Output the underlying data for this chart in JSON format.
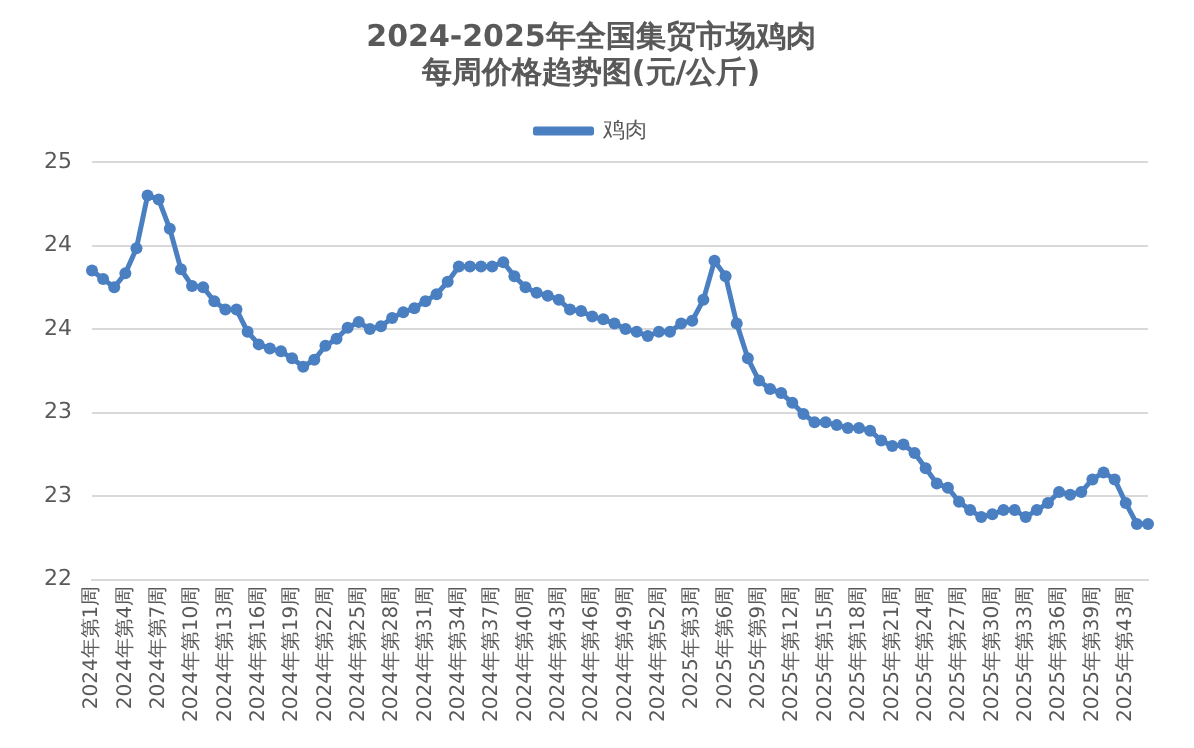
{
  "chart_data": {
    "type": "line",
    "title": "2024-2025年全国集贸市场鸡肉每周价格趋势图(元/公斤)",
    "categories": [
      "2024年第1周",
      null,
      null,
      "2024年第4周",
      null,
      null,
      "2024年第7周",
      null,
      null,
      "2024年第10周",
      null,
      null,
      "2024年第13周",
      null,
      null,
      "2024年第16周",
      null,
      null,
      "2024年第19周",
      null,
      null,
      "2024年第22周",
      null,
      null,
      "2024年第25周",
      null,
      null,
      "2024年第28周",
      null,
      null,
      "2024年第31周",
      null,
      null,
      "2024年第34周",
      null,
      null,
      "2024年第37周",
      null,
      null,
      "2024年第40周",
      null,
      null,
      "2024年第43周",
      null,
      null,
      "2024年第46周",
      null,
      null,
      "2024年第49周",
      null,
      null,
      "2024年第52周",
      null,
      null,
      "2025年第3周",
      null,
      null,
      "2025年第6周",
      null,
      null,
      "2025年第9周",
      null,
      null,
      "2025年第12周",
      null,
      null,
      "2025年第15周",
      null,
      null,
      "2025年第18周",
      null,
      null,
      "2025年第21周",
      null,
      null,
      "2025年第24周",
      null,
      null,
      "2025年第27周",
      null,
      null,
      "2025年第30周",
      null,
      null,
      "2025年第33周",
      null,
      null,
      "2025年第36周",
      null,
      null,
      "2025年第39周",
      null,
      null,
      "2025年第43周",
      null,
      null
    ],
    "series": [
      {
        "name": "鸡肉",
        "color": "#4a7fc1",
        "values": [
          24.22,
          24.16,
          24.1,
          24.2,
          24.38,
          24.76,
          24.73,
          24.52,
          24.23,
          24.11,
          24.1,
          24.0,
          23.94,
          23.94,
          23.78,
          23.69,
          23.66,
          23.64,
          23.59,
          23.53,
          23.58,
          23.68,
          23.73,
          23.81,
          23.85,
          23.8,
          23.82,
          23.88,
          23.92,
          23.95,
          24.0,
          24.05,
          24.14,
          24.25,
          24.25,
          24.25,
          24.25,
          24.28,
          24.18,
          24.1,
          24.06,
          24.04,
          24.01,
          23.94,
          23.93,
          23.89,
          23.87,
          23.84,
          23.8,
          23.78,
          23.75,
          23.78,
          23.78,
          23.84,
          23.86,
          24.01,
          24.29,
          24.18,
          23.84,
          23.59,
          23.43,
          23.37,
          23.34,
          23.27,
          23.19,
          23.13,
          23.13,
          23.11,
          23.09,
          23.09,
          23.07,
          23.0,
          22.96,
          22.97,
          22.91,
          22.8,
          22.69,
          22.66,
          22.56,
          22.5,
          22.45,
          22.47,
          22.5,
          22.5,
          22.45,
          22.5,
          22.55,
          22.63,
          22.61,
          22.63,
          22.72,
          22.77,
          22.72,
          22.55,
          22.4,
          22.4
        ]
      }
    ],
    "ylim": [
      22,
      25
    ],
    "yticks": [
      22,
      {
        "value": 22.6,
        "label": "23"
      },
      {
        "value": 23.2,
        "label": "23"
      },
      {
        "value": 23.8,
        "label": "24"
      },
      {
        "value": 24.4,
        "label": "24"
      },
      25
    ],
    "grid": "y",
    "legend": "top",
    "marker": "circle",
    "line_style": "solid"
  }
}
